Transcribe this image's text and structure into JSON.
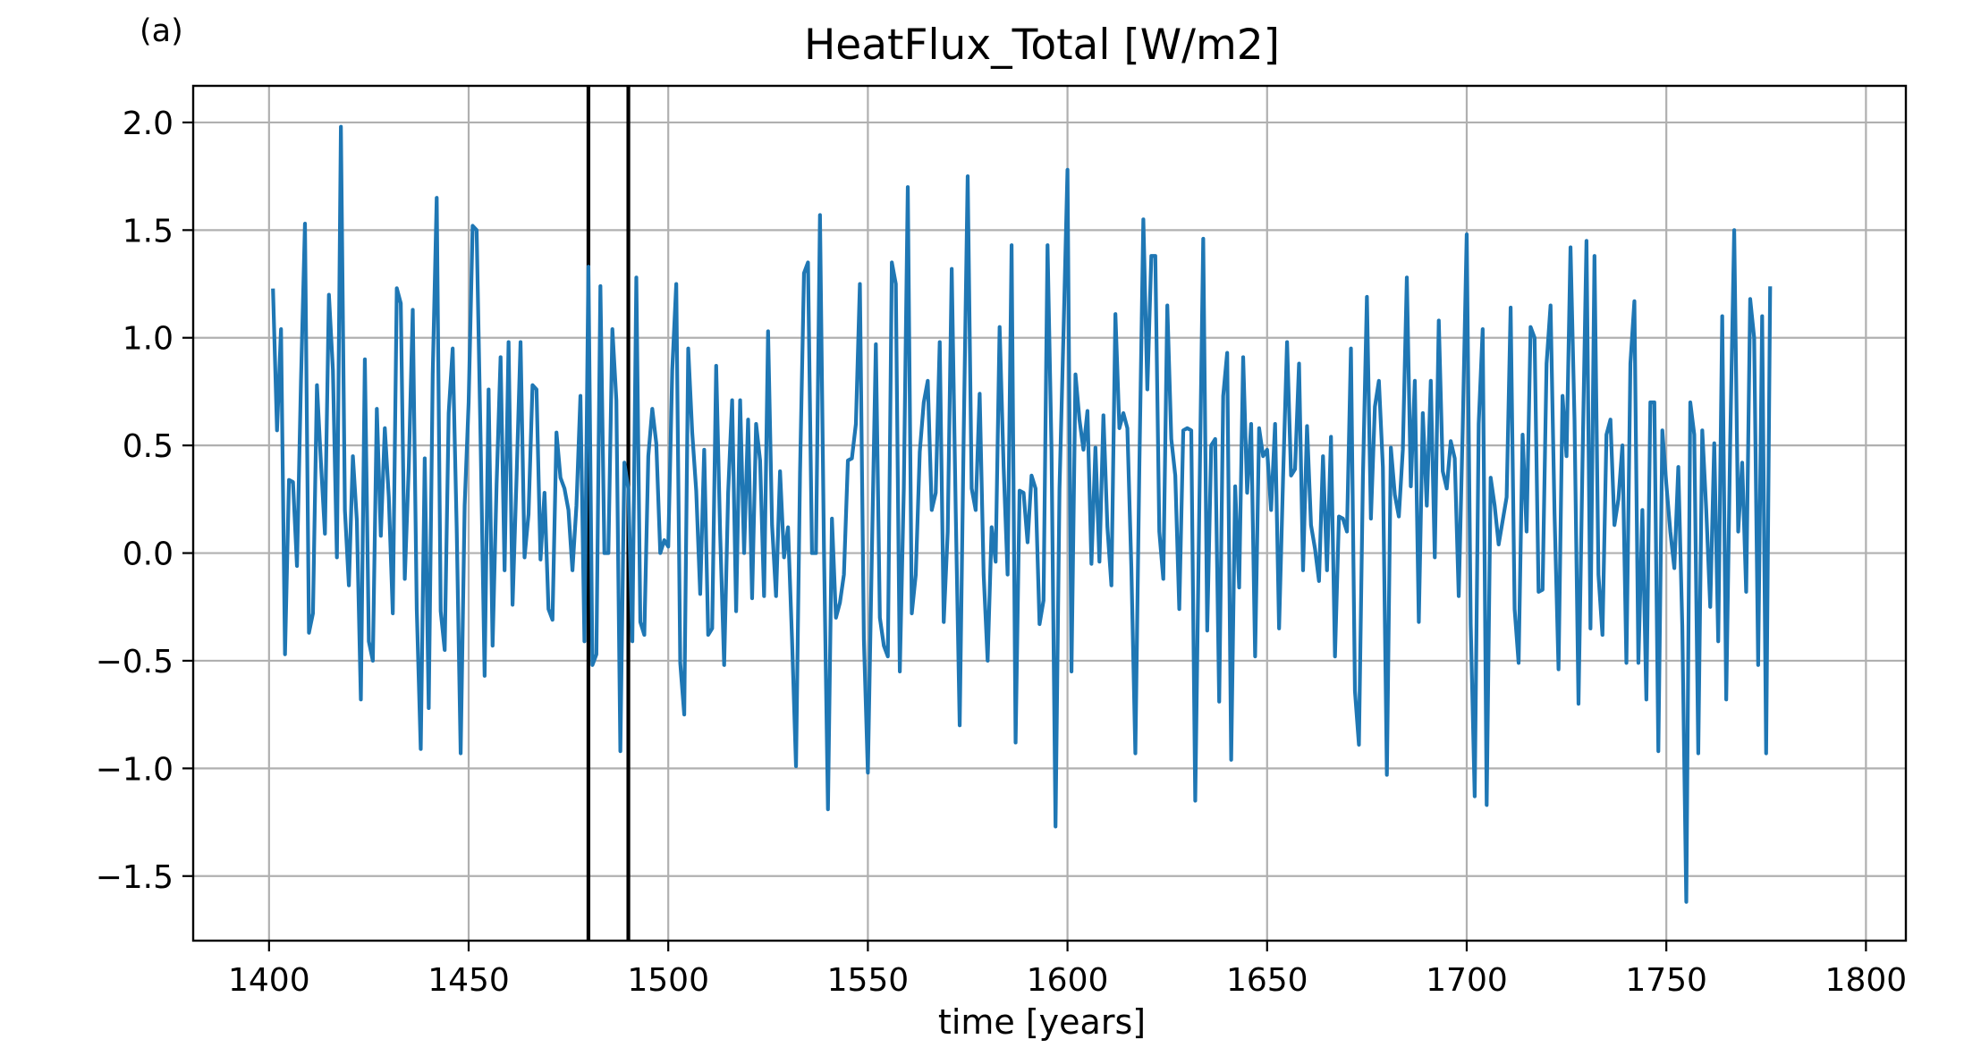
{
  "panel_label": "(a)",
  "chart_data": {
    "type": "line",
    "title": "HeatFlux_Total [W/m2]",
    "xlabel": "time [years]",
    "ylabel": "",
    "xlim": [
      1381,
      1810
    ],
    "ylim": [
      -1.8,
      2.17
    ],
    "xticks": [
      1400,
      1450,
      1500,
      1550,
      1600,
      1650,
      1700,
      1750,
      1800
    ],
    "xtick_labels": [
      "1400",
      "1450",
      "1500",
      "1550",
      "1600",
      "1650",
      "1700",
      "1750",
      "1800"
    ],
    "yticks": [
      -1.5,
      -1.0,
      -0.5,
      0.0,
      0.5,
      1.0,
      1.5,
      2.0
    ],
    "ytick_labels": [
      "−1.5",
      "−1.0",
      "−0.5",
      "0.0",
      "0.5",
      "1.0",
      "1.5",
      "2.0"
    ],
    "grid": true,
    "vlines": [
      1480,
      1490
    ],
    "series": [
      {
        "color": "#1f77b4",
        "x_start": 1401,
        "x_step": 1,
        "values": [
          1.22,
          0.57,
          1.04,
          -0.47,
          0.34,
          0.33,
          -0.06,
          0.8,
          1.53,
          -0.37,
          -0.28,
          0.78,
          0.42,
          0.09,
          1.2,
          0.85,
          -0.02,
          1.98,
          0.2,
          -0.15,
          0.45,
          0.15,
          -0.68,
          0.9,
          -0.41,
          -0.5,
          0.67,
          0.08,
          0.58,
          0.26,
          -0.28,
          1.23,
          1.16,
          -0.12,
          0.4,
          1.13,
          -0.26,
          -0.91,
          0.44,
          -0.72,
          0.83,
          1.65,
          -0.27,
          -0.45,
          0.65,
          0.95,
          0.12,
          -0.93,
          0.22,
          0.7,
          1.52,
          1.5,
          0.52,
          -0.57,
          0.76,
          -0.43,
          0.32,
          0.91,
          -0.08,
          0.98,
          -0.24,
          0.35,
          0.98,
          -0.02,
          0.18,
          0.78,
          0.76,
          -0.03,
          0.28,
          -0.26,
          -0.31,
          0.56,
          0.35,
          0.3,
          0.2,
          -0.08,
          0.22,
          0.73,
          -0.41,
          1.33,
          -0.52,
          -0.47,
          1.24,
          0.0,
          0.0,
          1.04,
          0.71,
          -0.92,
          0.42,
          0.3,
          -0.41,
          1.28,
          -0.32,
          -0.38,
          0.45,
          0.67,
          0.51,
          0.0,
          0.06,
          0.03,
          0.85,
          1.25,
          -0.51,
          -0.75,
          0.95,
          0.56,
          0.29,
          -0.19,
          0.48,
          -0.38,
          -0.35,
          0.87,
          0.09,
          -0.52,
          0.28,
          0.71,
          -0.27,
          0.71,
          0.0,
          0.62,
          -0.21,
          0.6,
          0.43,
          -0.2,
          1.03,
          0.13,
          -0.2,
          0.38,
          -0.02,
          0.12,
          -0.4,
          -0.99,
          0.37,
          1.3,
          1.35,
          0.0,
          0.0,
          1.57,
          0.02,
          -1.19,
          0.16,
          -0.3,
          -0.23,
          -0.1,
          0.43,
          0.44,
          0.6,
          1.25,
          -0.4,
          -1.02,
          0.0,
          0.97,
          -0.3,
          -0.43,
          -0.48,
          1.35,
          1.25,
          -0.55,
          0.3,
          1.7,
          -0.28,
          -0.1,
          0.47,
          0.7,
          0.8,
          0.2,
          0.28,
          0.98,
          -0.32,
          0.1,
          1.32,
          0.2,
          -0.8,
          0.55,
          1.75,
          0.3,
          0.2,
          0.74,
          -0.1,
          -0.5,
          0.12,
          -0.04,
          1.05,
          0.4,
          -0.1,
          1.43,
          -0.88,
          0.29,
          0.28,
          0.05,
          0.36,
          0.3,
          -0.33,
          -0.22,
          1.43,
          0.48,
          -1.27,
          0.3,
          1.02,
          1.78,
          -0.55,
          0.83,
          0.62,
          0.48,
          0.66,
          -0.05,
          0.49,
          -0.04,
          0.64,
          0.12,
          -0.15,
          1.11,
          0.58,
          0.65,
          0.58,
          -0.07,
          -0.93,
          0.4,
          1.55,
          0.76,
          1.38,
          1.38,
          0.1,
          -0.12,
          1.15,
          0.53,
          0.36,
          -0.26,
          0.57,
          0.58,
          0.57,
          -1.15,
          0.19,
          1.46,
          -0.36,
          0.5,
          0.53,
          -0.69,
          0.73,
          0.93,
          -0.96,
          0.31,
          -0.16,
          0.91,
          0.28,
          0.6,
          -0.48,
          0.58,
          0.45,
          0.48,
          0.2,
          0.6,
          -0.35,
          0.35,
          0.98,
          0.36,
          0.39,
          0.88,
          -0.08,
          0.59,
          0.13,
          0.02,
          -0.13,
          0.45,
          -0.08,
          0.54,
          -0.48,
          0.17,
          0.16,
          0.1,
          0.95,
          -0.64,
          -0.89,
          0.35,
          1.19,
          0.16,
          0.68,
          0.8,
          0.4,
          -1.03,
          0.49,
          0.27,
          0.17,
          0.48,
          1.28,
          0.31,
          0.8,
          -0.32,
          0.65,
          0.22,
          0.8,
          -0.02,
          1.08,
          0.38,
          0.3,
          0.52,
          0.44,
          -0.2,
          0.58,
          1.48,
          -0.33,
          -1.13,
          0.6,
          1.04,
          -1.17,
          0.35,
          0.22,
          0.04,
          0.15,
          0.26,
          1.14,
          -0.26,
          -0.51,
          0.55,
          0.1,
          1.05,
          1.0,
          -0.18,
          -0.17,
          0.88,
          1.15,
          0.18,
          -0.54,
          0.73,
          0.45,
          1.42,
          0.62,
          -0.7,
          0.42,
          1.45,
          -0.35,
          1.38,
          -0.1,
          -0.38,
          0.55,
          0.62,
          0.13,
          0.25,
          0.5,
          -0.51,
          0.88,
          1.17,
          -0.51,
          0.2,
          -0.68,
          0.7,
          0.7,
          -0.92,
          0.57,
          0.32,
          0.1,
          -0.07,
          0.4,
          -0.34,
          -1.62,
          0.7,
          0.55,
          -0.93,
          0.57,
          0.2,
          -0.25,
          0.51,
          -0.41,
          1.1,
          -0.68,
          0.52,
          1.5,
          0.1,
          0.42,
          -0.18,
          1.18,
          1.0,
          -0.52,
          1.1,
          -0.93,
          1.23
        ]
      }
    ]
  }
}
